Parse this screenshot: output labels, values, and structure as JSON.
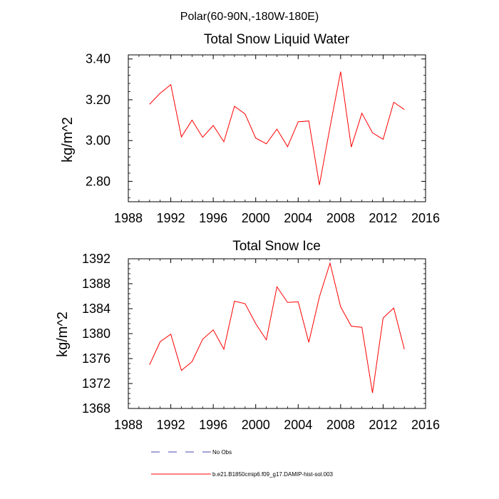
{
  "figure_title": "Polar(60-90N,-180W-180E)",
  "chart_data": [
    {
      "type": "line",
      "title": "Total Snow Liquid Water",
      "xlabel": "",
      "ylabel": "kg/m^2",
      "xlim": [
        1988,
        2016
      ],
      "ylim": [
        2.7,
        3.42
      ],
      "xticks": [
        1988,
        1992,
        1996,
        2000,
        2004,
        2008,
        2012,
        2016
      ],
      "xtick_labels": [
        "1988",
        "1992",
        "1996",
        "2000",
        "2004",
        "2008",
        "2012",
        "2016"
      ],
      "yticks": [
        2.8,
        3.0,
        3.2,
        3.4
      ],
      "ytick_labels": [
        "2.80",
        "3.00",
        "3.20",
        "3.40"
      ],
      "grid": false,
      "series": [
        {
          "name": "b.e21.B1850cmip6.f09_g17.DAMIP-hist-sol.003",
          "color": "#ff0000",
          "x": [
            1990,
            1991,
            1992,
            1993,
            1994,
            1995,
            1996,
            1997,
            1998,
            1999,
            2000,
            2001,
            2002,
            2003,
            2004,
            2005,
            2006,
            2007,
            2008,
            2009,
            2010,
            2011,
            2012,
            2013,
            2014
          ],
          "y": [
            3.178,
            3.232,
            3.274,
            3.018,
            3.1,
            3.016,
            3.074,
            2.994,
            3.168,
            3.13,
            3.012,
            2.984,
            3.056,
            2.97,
            3.092,
            3.096,
            2.782,
            3.066,
            3.338,
            2.968,
            3.134,
            3.038,
            3.006,
            3.188,
            3.152
          ]
        }
      ]
    },
    {
      "type": "line",
      "title": "Total Snow Ice",
      "xlabel": "",
      "ylabel": "kg/m^2",
      "xlim": [
        1988,
        2016
      ],
      "ylim": [
        1368,
        1392
      ],
      "xticks": [
        1988,
        1992,
        1996,
        2000,
        2004,
        2008,
        2012,
        2016
      ],
      "xtick_labels": [
        "1988",
        "1992",
        "1996",
        "2000",
        "2004",
        "2008",
        "2012",
        "2016"
      ],
      "yticks": [
        1368,
        1372,
        1376,
        1380,
        1384,
        1388,
        1392
      ],
      "ytick_labels": [
        "1368",
        "1372",
        "1376",
        "1380",
        "1384",
        "1388",
        "1392"
      ],
      "grid": false,
      "series": [
        {
          "name": "b.e21.B1850cmip6.f09_g17.DAMIP-hist-sol.003",
          "color": "#ff0000",
          "x": [
            1990,
            1991,
            1992,
            1993,
            1994,
            1995,
            1996,
            1997,
            1998,
            1999,
            2000,
            2001,
            2002,
            2003,
            2004,
            2005,
            2006,
            2007,
            2008,
            2009,
            2010,
            2011,
            2012,
            2013,
            2014
          ],
          "y": [
            1375.0,
            1378.7,
            1379.9,
            1374.1,
            1375.5,
            1379.1,
            1380.6,
            1377.5,
            1385.2,
            1384.8,
            1381.6,
            1379.0,
            1387.5,
            1385.0,
            1385.1,
            1378.6,
            1385.9,
            1391.3,
            1384.3,
            1381.2,
            1381.0,
            1370.5,
            1382.5,
            1384.1,
            1377.5
          ]
        }
      ]
    }
  ],
  "legend": {
    "placement": "bottom",
    "items": [
      {
        "label": "No Obs",
        "color": "#4a4ab0",
        "style": "dashed"
      },
      {
        "label": "b.e21.B1850cmip6.f09_g17.DAMIP-hist-sol.003",
        "color": "#ff0000",
        "style": "solid"
      }
    ]
  }
}
